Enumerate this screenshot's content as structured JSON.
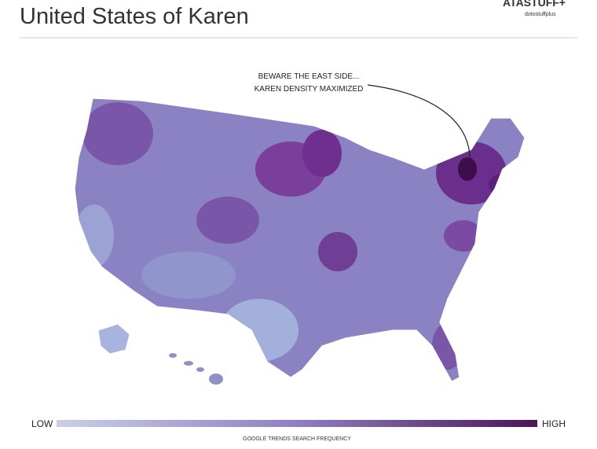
{
  "header": {
    "title": "United States of Karen",
    "brand": "ATASTUFF+",
    "handle": "dotostuffplus"
  },
  "annotation": {
    "lines": [
      "BEWARE THE EAST SIDE...",
      "KAREN DENSITY MAXIMIZED"
    ]
  },
  "legend": {
    "low": "LOW",
    "high": "HIGH",
    "caption": "GOOGLE TRENDS SEARCH FREQUENCY"
  }
}
